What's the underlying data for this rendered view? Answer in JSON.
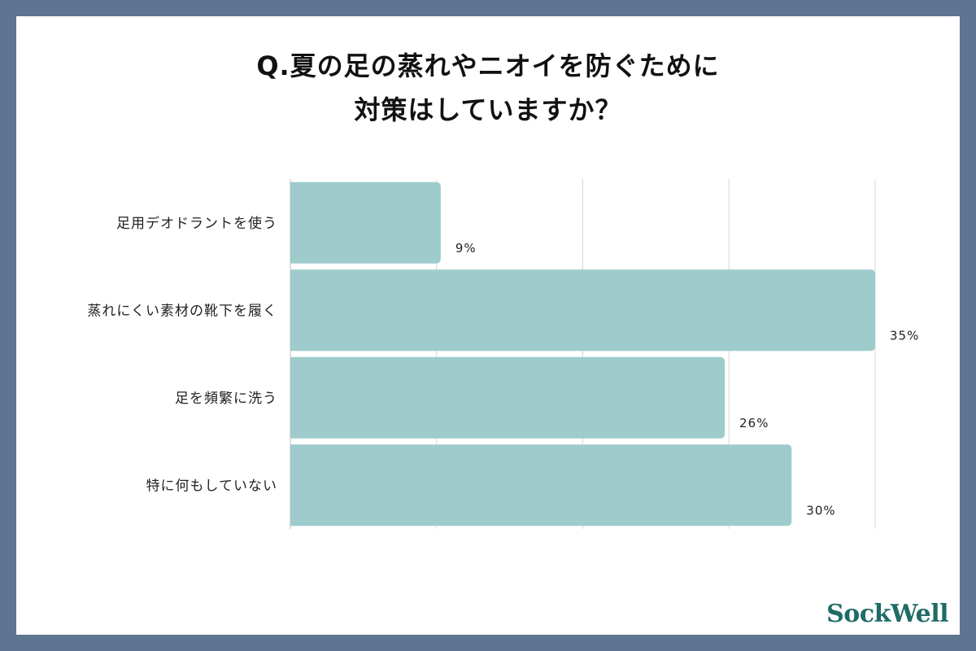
{
  "title": {
    "line1": "Q.夏の足の蒸れやニオイを防ぐために",
    "line2": "対策はしていますか？"
  },
  "logo": "SockWell",
  "colors": {
    "background": "#5e7591",
    "card": "#ffffff",
    "bar": "#9ecbcb",
    "grid": "#d9d9d9",
    "logo": "#1f6b66"
  },
  "chart_data": {
    "type": "bar",
    "orientation": "horizontal",
    "categories": [
      "足用デオドラントを使う",
      "蒸れにくい素材の靴下を履く",
      "足を頻繁に洗う",
      "特に何もしていない"
    ],
    "values": [
      9,
      35,
      26,
      30
    ],
    "value_labels": [
      "9%",
      "35%",
      "26%",
      "30%"
    ],
    "xlim": [
      0,
      35
    ],
    "grid": true
  }
}
